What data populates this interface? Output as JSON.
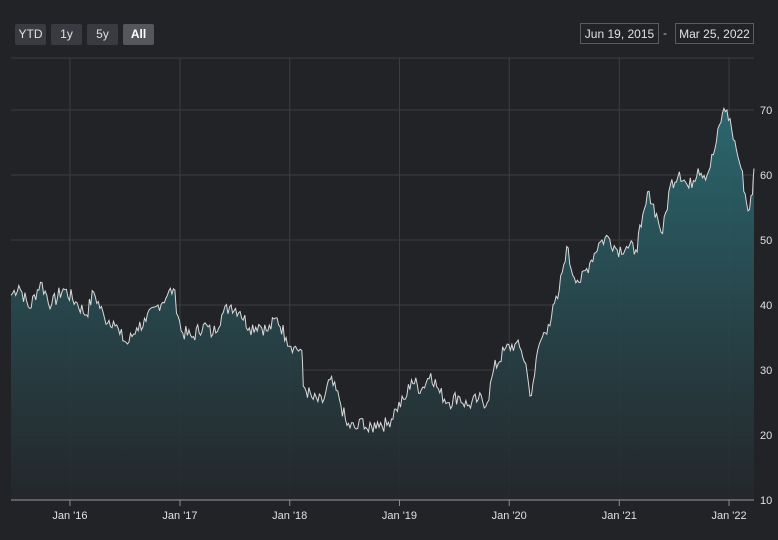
{
  "range_selector": {
    "buttons": [
      "YTD",
      "1y",
      "5y",
      "All"
    ],
    "selected": "All",
    "from": "Jun 19, 2015",
    "separator": "-",
    "to": "Mar 25, 2022"
  },
  "colors": {
    "background": "#222326",
    "line": "#d9d9d9",
    "area_top": "#2b6a72",
    "area_bottom": "#24272b",
    "grid": "#3c3d42"
  },
  "chart_data": {
    "type": "area",
    "x_start": "2015-06-19",
    "x_end": "2022-03-25",
    "ylim": [
      10,
      78
    ],
    "yticks": [
      10,
      20,
      30,
      40,
      50,
      60,
      70
    ],
    "xtick_labels": [
      "Jan '16",
      "Jan '17",
      "Jan '18",
      "Jan '19",
      "Jan '20",
      "Jan '21",
      "Jan '22"
    ],
    "xtick_dates": [
      "2016-01-01",
      "2017-01-01",
      "2018-01-01",
      "2019-01-01",
      "2020-01-01",
      "2021-01-01",
      "2022-01-01"
    ],
    "grid": true,
    "y_axis_side": "right",
    "points": [
      [
        "2015-06-19",
        41.5
      ],
      [
        "2015-07-15",
        43.0
      ],
      [
        "2015-08-20",
        39.5
      ],
      [
        "2015-09-25",
        43.5
      ],
      [
        "2015-11-01",
        40.0
      ],
      [
        "2015-12-10",
        42.5
      ],
      [
        "2016-01-20",
        40.5
      ],
      [
        "2016-02-25",
        38.5
      ],
      [
        "2016-03-20",
        42.0
      ],
      [
        "2016-04-25",
        38.0
      ],
      [
        "2016-05-25",
        37.5
      ],
      [
        "2016-06-15",
        35.5
      ],
      [
        "2016-07-10",
        34.0
      ],
      [
        "2016-08-10",
        36.5
      ],
      [
        "2016-09-10",
        37.5
      ],
      [
        "2016-10-20",
        40.0
      ],
      [
        "2016-11-20",
        41.5
      ],
      [
        "2016-12-10",
        42.5
      ],
      [
        "2017-01-05",
        36.0
      ],
      [
        "2017-02-10",
        35.0
      ],
      [
        "2017-03-20",
        37.0
      ],
      [
        "2017-04-20",
        35.5
      ],
      [
        "2017-05-20",
        38.5
      ],
      [
        "2017-06-20",
        40.0
      ],
      [
        "2017-07-20",
        39.0
      ],
      [
        "2017-08-20",
        36.5
      ],
      [
        "2017-09-20",
        37.0
      ],
      [
        "2017-10-20",
        36.0
      ],
      [
        "2017-11-20",
        38.0
      ],
      [
        "2017-12-20",
        35.0
      ],
      [
        "2018-01-15",
        33.5
      ],
      [
        "2018-02-10",
        33.0
      ],
      [
        "2018-02-15",
        27.5
      ],
      [
        "2018-03-20",
        25.5
      ],
      [
        "2018-04-20",
        25.0
      ],
      [
        "2018-05-15",
        28.5
      ],
      [
        "2018-06-15",
        25.5
      ],
      [
        "2018-07-10",
        21.5
      ],
      [
        "2018-08-15",
        21.0
      ],
      [
        "2018-09-01",
        22.5
      ],
      [
        "2018-09-20",
        20.5
      ],
      [
        "2018-10-20",
        22.0
      ],
      [
        "2018-11-20",
        21.5
      ],
      [
        "2018-12-20",
        24.0
      ],
      [
        "2019-01-20",
        25.5
      ],
      [
        "2019-02-10",
        28.5
      ],
      [
        "2019-03-15",
        27.0
      ],
      [
        "2019-04-15",
        29.5
      ],
      [
        "2019-05-15",
        26.5
      ],
      [
        "2019-06-15",
        25.0
      ],
      [
        "2019-07-15",
        26.0
      ],
      [
        "2019-08-15",
        24.5
      ],
      [
        "2019-09-20",
        25.5
      ],
      [
        "2019-10-20",
        25.0
      ],
      [
        "2019-11-10",
        30.0
      ],
      [
        "2019-12-15",
        33.0
      ],
      [
        "2020-01-20",
        34.0
      ],
      [
        "2020-02-10",
        33.0
      ],
      [
        "2020-02-25",
        31.0
      ],
      [
        "2020-03-10",
        26.0
      ],
      [
        "2020-03-20",
        28.0
      ],
      [
        "2020-04-10",
        34.0
      ],
      [
        "2020-05-10",
        37.0
      ],
      [
        "2020-06-10",
        41.0
      ],
      [
        "2020-06-25",
        45.0
      ],
      [
        "2020-07-10",
        49.0
      ],
      [
        "2020-07-25",
        45.5
      ],
      [
        "2020-08-25",
        43.5
      ],
      [
        "2020-09-25",
        46.5
      ],
      [
        "2020-10-25",
        49.5
      ],
      [
        "2020-11-25",
        50.5
      ],
      [
        "2020-12-25",
        48.5
      ],
      [
        "2021-01-25",
        49.0
      ],
      [
        "2021-02-25",
        48.5
      ],
      [
        "2021-03-15",
        52.0
      ],
      [
        "2021-04-10",
        57.5
      ],
      [
        "2021-05-10",
        53.0
      ],
      [
        "2021-05-25",
        51.0
      ],
      [
        "2021-06-20",
        58.5
      ],
      [
        "2021-07-20",
        60.5
      ],
      [
        "2021-08-20",
        58.0
      ],
      [
        "2021-09-20",
        61.0
      ],
      [
        "2021-10-20",
        60.0
      ],
      [
        "2021-11-15",
        64.0
      ],
      [
        "2021-12-10",
        69.5
      ],
      [
        "2021-12-25",
        70.0
      ],
      [
        "2022-01-10",
        67.0
      ],
      [
        "2022-01-25",
        64.0
      ],
      [
        "2022-02-10",
        61.0
      ],
      [
        "2022-03-05",
        54.5
      ],
      [
        "2022-03-20",
        57.0
      ],
      [
        "2022-03-25",
        61.0
      ]
    ]
  }
}
